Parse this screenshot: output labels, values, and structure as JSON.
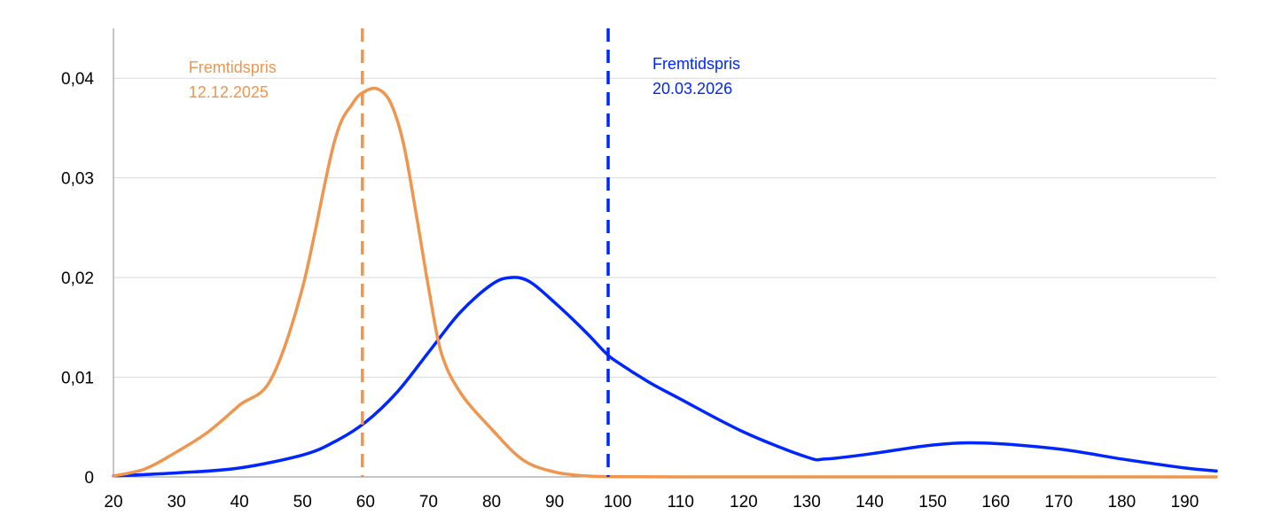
{
  "chart_data": {
    "type": "line",
    "title": "",
    "xlabel": "",
    "ylabel": "",
    "xlim": [
      20,
      195
    ],
    "ylim": [
      0,
      0.045
    ],
    "grid": "horizontal",
    "x_ticks": [
      20,
      30,
      40,
      50,
      60,
      70,
      80,
      90,
      100,
      110,
      120,
      130,
      140,
      150,
      160,
      170,
      180,
      190
    ],
    "x_tick_labels": [
      "20",
      "30",
      "40",
      "50",
      "60",
      "70",
      "80",
      "90",
      "100",
      "110",
      "120",
      "130",
      "140",
      "150",
      "160",
      "170",
      "180",
      "190"
    ],
    "y_ticks": [
      0,
      0.01,
      0.02,
      0.03,
      0.04
    ],
    "y_tick_labels": [
      "0",
      "0,01",
      "0,02",
      "0,03",
      "0,04"
    ],
    "series": [
      {
        "color": "#F0954E",
        "x": [
          20,
          25,
          30,
          35,
          40,
          45,
          50,
          55,
          58,
          60,
          62,
          64,
          66,
          68,
          70,
          72,
          75,
          80,
          85,
          90,
          95,
          100,
          110,
          120,
          130,
          140,
          150,
          160,
          170,
          180,
          190,
          195
        ],
        "y": [
          0.0001,
          0.0008,
          0.0025,
          0.0045,
          0.0072,
          0.0098,
          0.019,
          0.0335,
          0.0375,
          0.0387,
          0.0389,
          0.0375,
          0.0335,
          0.0265,
          0.019,
          0.0125,
          0.0085,
          0.0048,
          0.0017,
          0.0005,
          0.0001,
          3e-05,
          0,
          0,
          0,
          0,
          0,
          0,
          0,
          0,
          0,
          0
        ]
      },
      {
        "color": "#0026FF",
        "x": [
          20,
          30,
          40,
          50,
          55,
          60,
          65,
          70,
          75,
          80,
          83,
          86,
          90,
          95,
          98,
          100,
          105,
          110,
          120,
          130,
          133,
          140,
          150,
          158,
          170,
          180,
          190,
          195
        ],
        "y": [
          0.0001,
          0.0004,
          0.0009,
          0.0022,
          0.0035,
          0.0055,
          0.0085,
          0.0125,
          0.0165,
          0.0193,
          0.02,
          0.0196,
          0.0175,
          0.0145,
          0.0125,
          0.0115,
          0.0095,
          0.0078,
          0.0045,
          0.002,
          0.0018,
          0.0023,
          0.0032,
          0.0034,
          0.0028,
          0.0018,
          0.0009,
          0.0006
        ]
      }
    ],
    "vertical_lines": [
      {
        "x": 59.5,
        "color": "#F0954E",
        "style": "dashed"
      },
      {
        "x": 98.5,
        "color": "#0026FF",
        "style": "dashed"
      }
    ],
    "annotations": [
      {
        "lines": [
          "Fremtidspris",
          "12.12.2025"
        ],
        "color": "#F0954E",
        "anchor_x": 59.5,
        "side": "left"
      },
      {
        "lines": [
          "Fremtidspris",
          "20.03.2026"
        ],
        "color": "#0026FF",
        "anchor_x": 98.5,
        "side": "right"
      }
    ]
  }
}
